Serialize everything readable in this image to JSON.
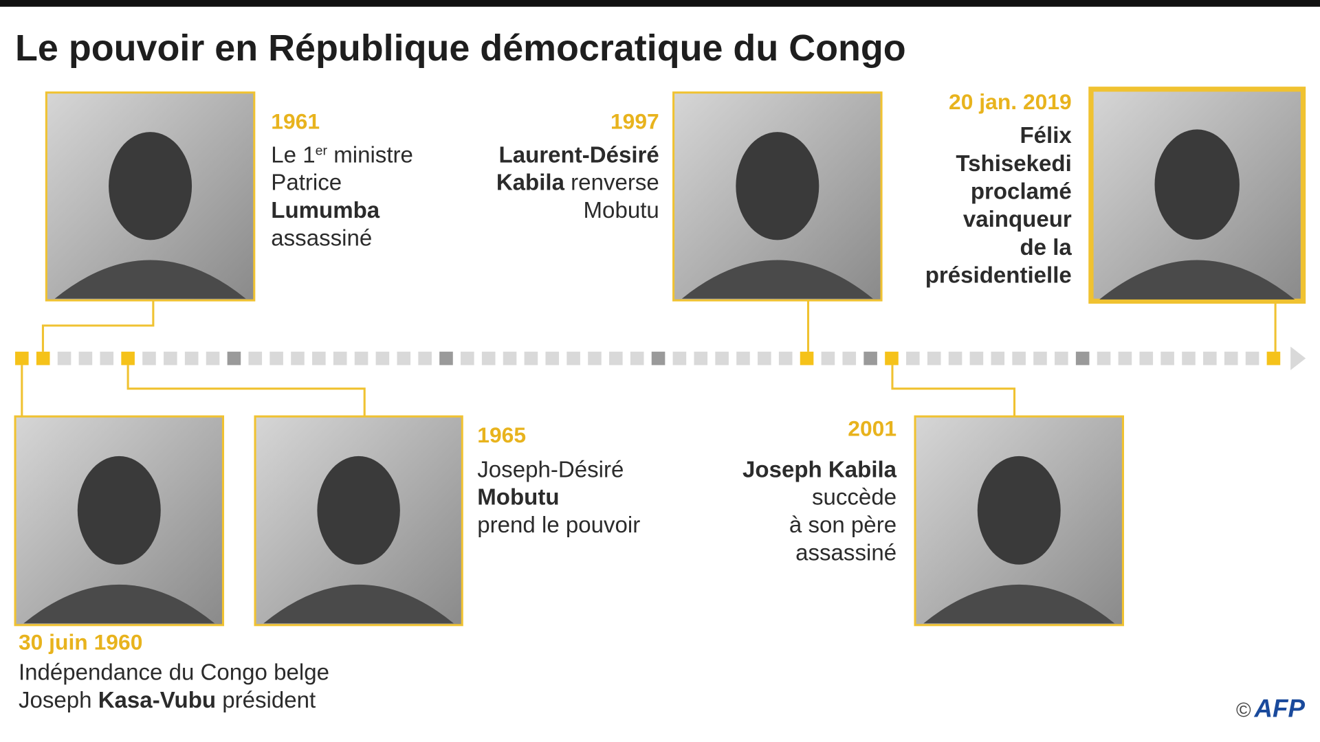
{
  "title": "Le pouvoir en République démocratique du Congo",
  "events": [
    {
      "date": "30 juin 1960",
      "lines": [
        [
          {
            "text": "Indépendance du Congo belge"
          }
        ],
        [
          {
            "text": "Joseph "
          },
          {
            "text": "Kasa-Vubu",
            "bold": true
          },
          {
            "text": " président"
          }
        ]
      ]
    },
    {
      "date": "1961",
      "lines": [
        [
          {
            "text": "Le 1"
          },
          {
            "text": "er",
            "sup": true
          },
          {
            "text": " ministre"
          }
        ],
        [
          {
            "text": "Patrice"
          }
        ],
        [
          {
            "text": "Lumumba",
            "bold": true
          }
        ],
        [
          {
            "text": "assassiné"
          }
        ]
      ]
    },
    {
      "date": "1965",
      "lines": [
        [
          {
            "text": "Joseph-Désiré"
          }
        ],
        [
          {
            "text": "Mobutu",
            "bold": true
          }
        ],
        [
          {
            "text": "prend le pouvoir"
          }
        ]
      ]
    },
    {
      "date": "1997",
      "lines": [
        [
          {
            "text": "Laurent-Désiré",
            "bold": true
          }
        ],
        [
          {
            "text": "Kabila",
            "bold": true
          },
          {
            "text": " renverse"
          }
        ],
        [
          {
            "text": "Mobutu"
          }
        ]
      ]
    },
    {
      "date": "2001",
      "lines": [
        [
          {
            "text": "Joseph Kabila",
            "bold": true
          }
        ],
        [
          {
            "text": "succède"
          }
        ],
        [
          {
            "text": "à son père"
          }
        ],
        [
          {
            "text": "assassiné"
          }
        ]
      ]
    },
    {
      "date": "20 jan. 2019",
      "lines": [
        [
          {
            "text": "Félix",
            "bold": true
          }
        ],
        [
          {
            "text": "Tshisekedi",
            "bold": true
          }
        ],
        [
          {
            "text": "proclamé",
            "bold": true
          }
        ],
        [
          {
            "text": "vainqueur",
            "bold": true
          }
        ],
        [
          {
            "text": "de la",
            "bold": true
          }
        ],
        [
          {
            "text": "présidentielle",
            "bold": true
          }
        ]
      ]
    }
  ],
  "credit": {
    "symbol": "©",
    "agency": "AFP"
  }
}
